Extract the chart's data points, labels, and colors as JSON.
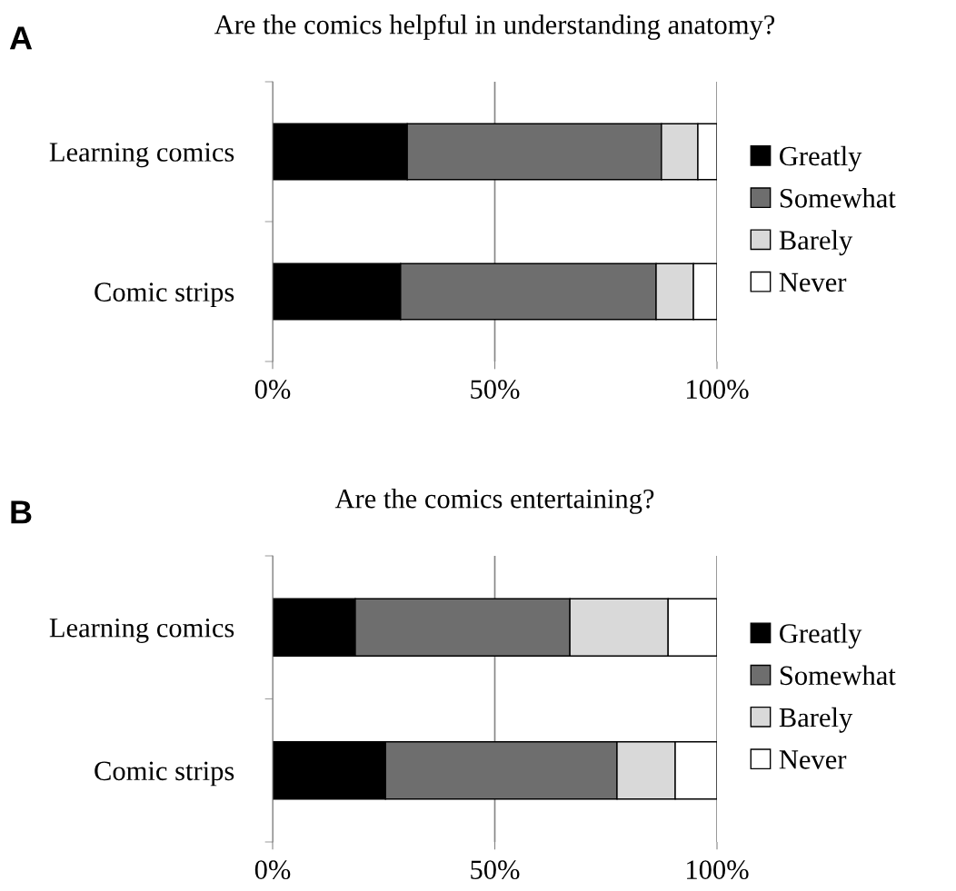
{
  "chart_data": [
    {
      "type": "bar",
      "orientation": "horizontal",
      "stacked": true,
      "title": "Are the comics helpful in understanding anatomy?",
      "annotations": [
        "A"
      ],
      "categories": [
        "Learning comics",
        "Comic strips"
      ],
      "series": [
        {
          "name": "Greatly",
          "color": "#000000",
          "values": [
            30.3,
            28.8
          ]
        },
        {
          "name": "Somewhat",
          "color": "#6e6e6e",
          "values": [
            57.2,
            57.5
          ]
        },
        {
          "name": "Barely",
          "color": "#d9d9d9",
          "values": [
            8.2,
            8.4
          ]
        },
        {
          "name": "Never",
          "color": "#ffffff",
          "values": [
            4.3,
            5.3
          ]
        }
      ],
      "xlim": [
        0,
        100
      ],
      "xticks": [
        {
          "value": 0,
          "label": "0%"
        },
        {
          "value": 50,
          "label": "50%"
        },
        {
          "value": 100,
          "label": "100%"
        }
      ],
      "grid": "x",
      "legend": "right"
    },
    {
      "type": "bar",
      "orientation": "horizontal",
      "stacked": true,
      "title": "Are the comics entertaining?",
      "annotations": [
        "B"
      ],
      "categories": [
        "Learning comics",
        "Comic strips"
      ],
      "series": [
        {
          "name": "Greatly",
          "color": "#000000",
          "values": [
            18.6,
            25.4
          ]
        },
        {
          "name": "Somewhat",
          "color": "#6e6e6e",
          "values": [
            48.3,
            52.1
          ]
        },
        {
          "name": "Barely",
          "color": "#d9d9d9",
          "values": [
            22.1,
            13.1
          ]
        },
        {
          "name": "Never",
          "color": "#ffffff",
          "values": [
            11.0,
            9.4
          ]
        }
      ],
      "xlim": [
        0,
        100
      ],
      "xticks": [
        {
          "value": 0,
          "label": "0%"
        },
        {
          "value": 50,
          "label": "50%"
        },
        {
          "value": 100,
          "label": "100%"
        }
      ],
      "grid": "x",
      "legend": "right"
    }
  ]
}
